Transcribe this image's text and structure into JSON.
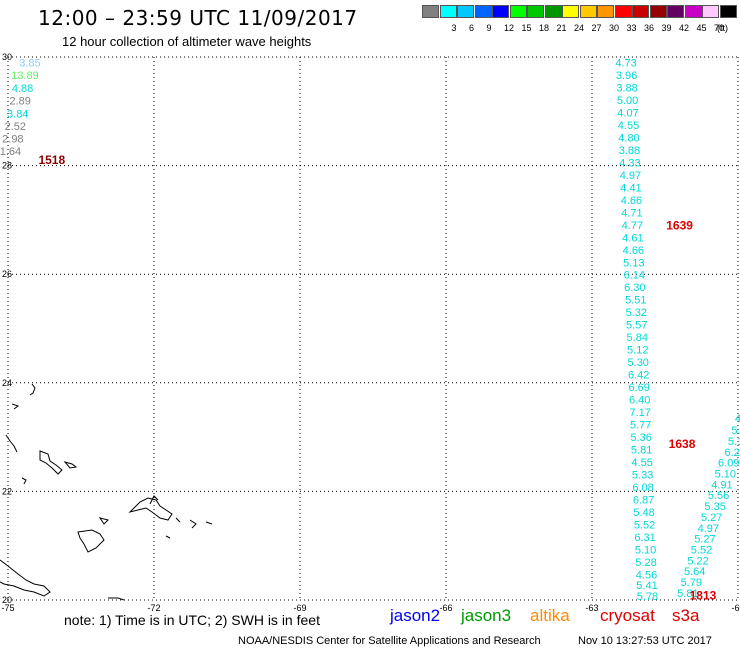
{
  "header": {
    "title": "12:00 – 23:59 UTC 11/09/2017",
    "subtitle": "12 hour collection of altimeter wave heights"
  },
  "scale": {
    "unit": "(ft)",
    "bins": [
      {
        "color": "#808080",
        "label": ""
      },
      {
        "color": "#00ffff",
        "label": "3"
      },
      {
        "color": "#00c8ff",
        "label": "6"
      },
      {
        "color": "#0064ff",
        "label": "9"
      },
      {
        "color": "#0000ff",
        "label": "12"
      },
      {
        "color": "#00ff00",
        "label": "15"
      },
      {
        "color": "#00c800",
        "label": "18"
      },
      {
        "color": "#009600",
        "label": "21"
      },
      {
        "color": "#ffff00",
        "label": "24"
      },
      {
        "color": "#ffc800",
        "label": "27"
      },
      {
        "color": "#ff9600",
        "label": "30"
      },
      {
        "color": "#ff0000",
        "label": "33"
      },
      {
        "color": "#c80000",
        "label": "36"
      },
      {
        "color": "#960000",
        "label": "39"
      },
      {
        "color": "#640064",
        "label": "42"
      },
      {
        "color": "#c800c8",
        "label": "45"
      },
      {
        "color": "#ffc8ff",
        "label": "70"
      },
      {
        "color": "#000000",
        "label": ""
      }
    ]
  },
  "map": {
    "lon_range": [
      -75,
      -60
    ],
    "lat_range": [
      20,
      30
    ],
    "lon_ticks": [
      "-75",
      "-72",
      "-69",
      "-66",
      "-63",
      "-60"
    ],
    "lat_ticks": [
      "30",
      "28",
      "26",
      "24",
      "22",
      "20"
    ],
    "tracks": [
      {
        "time_label": "1518",
        "time_color": "#8b0000",
        "label_pos": {
          "lon": -74.1,
          "lat": 28.1
        },
        "points": [
          {
            "lon": -74.55,
            "lat": 29.9,
            "v": "3.85",
            "c": "#87cefa"
          },
          {
            "lon": -74.65,
            "lat": 29.67,
            "v": "13.89",
            "c": "#66ee66"
          },
          {
            "lon": -74.7,
            "lat": 29.43,
            "v": "4.88",
            "c": "#00d8d8"
          },
          {
            "lon": -74.75,
            "lat": 29.2,
            "v": "2.89",
            "c": "#808080"
          },
          {
            "lon": -74.8,
            "lat": 28.96,
            "v": "3.84",
            "c": "#00d8d8"
          },
          {
            "lon": -74.85,
            "lat": 28.73,
            "v": "2.52",
            "c": "#808080"
          },
          {
            "lon": -74.9,
            "lat": 28.5,
            "v": "2.98",
            "c": "#808080"
          },
          {
            "lon": -74.95,
            "lat": 28.27,
            "v": "1.64",
            "c": "#808080"
          }
        ]
      },
      {
        "time_label": "1639",
        "time_color": "#e00000",
        "label_pos": {
          "lon": -61.2,
          "lat": 26.9
        },
        "points": [
          {
            "lon": -62.3,
            "lat": 29.9,
            "v": "4.73",
            "c": "#00d8d8"
          },
          {
            "lon": -62.29,
            "lat": 29.67,
            "v": "3.96",
            "c": "#00d8d8"
          },
          {
            "lon": -62.28,
            "lat": 29.44,
            "v": "3.88",
            "c": "#00d8d8"
          },
          {
            "lon": -62.27,
            "lat": 29.21,
            "v": "5.00",
            "c": "#00d8d8"
          },
          {
            "lon": -62.26,
            "lat": 28.98,
            "v": "4.07",
            "c": "#00d8d8"
          },
          {
            "lon": -62.25,
            "lat": 28.75,
            "v": "4.55",
            "c": "#00d8d8"
          },
          {
            "lon": -62.24,
            "lat": 28.52,
            "v": "4.80",
            "c": "#00d8d8"
          },
          {
            "lon": -62.23,
            "lat": 28.29,
            "v": "3.88",
            "c": "#00d8d8"
          },
          {
            "lon": -62.22,
            "lat": 28.06,
            "v": "4.33",
            "c": "#00d8d8"
          },
          {
            "lon": -62.21,
            "lat": 27.83,
            "v": "4.97",
            "c": "#00d8d8"
          },
          {
            "lon": -62.2,
            "lat": 27.6,
            "v": "4.41",
            "c": "#00d8d8"
          },
          {
            "lon": -62.19,
            "lat": 27.37,
            "v": "4.66",
            "c": "#00d8d8"
          },
          {
            "lon": -62.18,
            "lat": 27.14,
            "v": "4.71",
            "c": "#00d8d8"
          },
          {
            "lon": -62.17,
            "lat": 26.91,
            "v": "4.77",
            "c": "#00d8d8"
          },
          {
            "lon": -62.16,
            "lat": 26.68,
            "v": "4.61",
            "c": "#00d8d8"
          },
          {
            "lon": -62.15,
            "lat": 26.45,
            "v": "4.66",
            "c": "#00d8d8"
          },
          {
            "lon": -62.14,
            "lat": 26.22,
            "v": "5.13",
            "c": "#00d8d8"
          },
          {
            "lon": -62.13,
            "lat": 25.99,
            "v": "6.14",
            "c": "#00d8d8"
          },
          {
            "lon": -62.12,
            "lat": 25.76,
            "v": "6.30",
            "c": "#00d8d8"
          }
        ]
      },
      {
        "time_label": "1638",
        "time_color": "#e00000",
        "label_pos": {
          "lon": -61.15,
          "lat": 22.87
        },
        "points": [
          {
            "lon": -62.1,
            "lat": 25.53,
            "v": "5.51",
            "c": "#00d8d8"
          },
          {
            "lon": -62.09,
            "lat": 25.3,
            "v": "5.32",
            "c": "#00d8d8"
          },
          {
            "lon": -62.08,
            "lat": 25.07,
            "v": "5.57",
            "c": "#00d8d8"
          },
          {
            "lon": -62.07,
            "lat": 24.84,
            "v": "5.84",
            "c": "#00d8d8"
          },
          {
            "lon": -62.06,
            "lat": 24.61,
            "v": "5.12",
            "c": "#00d8d8"
          },
          {
            "lon": -62.05,
            "lat": 24.38,
            "v": "5.30",
            "c": "#00d8d8"
          },
          {
            "lon": -62.04,
            "lat": 24.15,
            "v": "6.42",
            "c": "#00d8d8"
          },
          {
            "lon": -62.03,
            "lat": 23.92,
            "v": "6.69",
            "c": "#00d8d8"
          },
          {
            "lon": -62.02,
            "lat": 23.69,
            "v": "6.40",
            "c": "#00d8d8"
          },
          {
            "lon": -62.01,
            "lat": 23.46,
            "v": "7.17",
            "c": "#00d8d8"
          },
          {
            "lon": -62.0,
            "lat": 23.23,
            "v": "5.77",
            "c": "#00d8d8"
          },
          {
            "lon": -61.99,
            "lat": 23.0,
            "v": "5.36",
            "c": "#00d8d8"
          },
          {
            "lon": -61.98,
            "lat": 22.77,
            "v": "5.81",
            "c": "#00d8d8"
          },
          {
            "lon": -61.97,
            "lat": 22.54,
            "v": "4.55",
            "c": "#00d8d8"
          },
          {
            "lon": -61.96,
            "lat": 22.31,
            "v": "5.33",
            "c": "#00d8d8"
          },
          {
            "lon": -61.95,
            "lat": 22.08,
            "v": "6.08",
            "c": "#00d8d8"
          },
          {
            "lon": -61.94,
            "lat": 21.85,
            "v": "6.87",
            "c": "#00d8d8"
          },
          {
            "lon": -61.93,
            "lat": 21.62,
            "v": "5.48",
            "c": "#00d8d8"
          },
          {
            "lon": -61.92,
            "lat": 21.39,
            "v": "5.52",
            "c": "#00d8d8"
          },
          {
            "lon": -61.91,
            "lat": 21.16,
            "v": "6.31",
            "c": "#00d8d8"
          },
          {
            "lon": -61.9,
            "lat": 20.93,
            "v": "5.10",
            "c": "#00d8d8"
          },
          {
            "lon": -61.89,
            "lat": 20.7,
            "v": "5.28",
            "c": "#00d8d8"
          },
          {
            "lon": -61.88,
            "lat": 20.47,
            "v": "4.56",
            "c": "#00d8d8"
          },
          {
            "lon": -61.87,
            "lat": 20.28,
            "v": "5.41",
            "c": "#00d8d8"
          },
          {
            "lon": -61.86,
            "lat": 20.07,
            "v": "5.78",
            "c": "#00d8d8"
          }
        ]
      },
      {
        "time_label": "1813",
        "time_color": "#e00000",
        "label_pos": {
          "lon": -60.72,
          "lat": 20.08
        },
        "points": [
          {
            "lon": -60.0,
            "lat": 23.35,
            "v": "4",
            "c": "#00d8d8"
          },
          {
            "lon": -59.98,
            "lat": 23.13,
            "v": "5.1",
            "c": "#00d8d8"
          },
          {
            "lon": -60.05,
            "lat": 22.93,
            "v": "5.1",
            "c": "#00d8d8"
          },
          {
            "lon": -60.12,
            "lat": 22.73,
            "v": "6.2",
            "c": "#00d8d8"
          },
          {
            "lon": -60.19,
            "lat": 22.53,
            "v": "6.09",
            "c": "#00d8d8"
          },
          {
            "lon": -60.26,
            "lat": 22.33,
            "v": "5.10",
            "c": "#00d8d8"
          },
          {
            "lon": -60.33,
            "lat": 22.13,
            "v": "4.91",
            "c": "#00d8d8"
          },
          {
            "lon": -60.4,
            "lat": 21.93,
            "v": "5.56",
            "c": "#00d8d8"
          },
          {
            "lon": -60.47,
            "lat": 21.73,
            "v": "5.35",
            "c": "#00d8d8"
          },
          {
            "lon": -60.54,
            "lat": 21.53,
            "v": "5.27",
            "c": "#00d8d8"
          },
          {
            "lon": -60.61,
            "lat": 21.33,
            "v": "4.97",
            "c": "#00d8d8"
          },
          {
            "lon": -60.68,
            "lat": 21.13,
            "v": "5.27",
            "c": "#00d8d8"
          },
          {
            "lon": -60.75,
            "lat": 20.93,
            "v": "5.52",
            "c": "#00d8d8"
          },
          {
            "lon": -60.82,
            "lat": 20.73,
            "v": "5.22",
            "c": "#00d8d8"
          },
          {
            "lon": -60.89,
            "lat": 20.53,
            "v": "5.64",
            "c": "#00d8d8"
          },
          {
            "lon": -60.96,
            "lat": 20.33,
            "v": "5.79",
            "c": "#00d8d8"
          },
          {
            "lon": -61.03,
            "lat": 20.13,
            "v": "5.81",
            "c": "#00d8d8"
          }
        ]
      }
    ]
  },
  "footer": {
    "note": "note: 1) Time is in UTC; 2) SWH is in feet",
    "legend": [
      {
        "label": "jason2",
        "color": "#0000ee"
      },
      {
        "label": "jason3",
        "color": "#009900"
      },
      {
        "label": "altika",
        "color": "#ff8c00"
      },
      {
        "label": "cryosat",
        "color": "#e00000"
      },
      {
        "label": "s3a",
        "color": "#e00000"
      }
    ],
    "credit": "NOAA/NESDIS Center for Satellite Applications and Research",
    "generated": "Nov 10 13:27:53 UTC 2017"
  }
}
